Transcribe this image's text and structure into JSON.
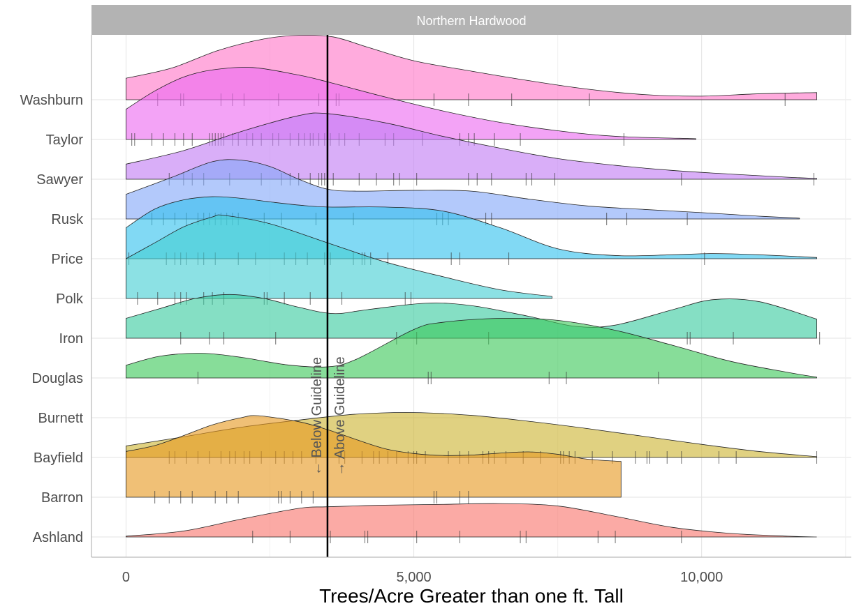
{
  "chart_data": {
    "type": "ridgeline",
    "facet_label": "Northern Hardwood",
    "xlabel": "Trees/Acre Greater than one ft. Tall",
    "ylabel": "",
    "xlim": [
      -600,
      12600
    ],
    "x_ticks": [
      {
        "value": 0,
        "label": "0"
      },
      {
        "value": 5000,
        "label": "5,000"
      },
      {
        "value": 10000,
        "label": "10,000"
      }
    ],
    "grid": true,
    "guideline": {
      "value": 3500,
      "below_label": "← Below Guideline",
      "above_label": "→ Above Guideline"
    },
    "series": [
      {
        "name": "Ashland",
        "color": "#F8766D",
        "density": [
          [
            0,
            0.02
          ],
          [
            1000,
            0.15
          ],
          [
            2000,
            0.45
          ],
          [
            3000,
            0.72
          ],
          [
            3500,
            0.76
          ],
          [
            4500,
            0.8
          ],
          [
            5500,
            0.82
          ],
          [
            6500,
            0.84
          ],
          [
            7500,
            0.78
          ],
          [
            8500,
            0.52
          ],
          [
            9500,
            0.24
          ],
          [
            10500,
            0.09
          ],
          [
            11500,
            0.02
          ],
          [
            12000,
            0
          ]
        ],
        "points": [
          2200,
          2850,
          3500,
          3550,
          4150,
          4200,
          5050,
          5800,
          6850,
          6950,
          8200,
          8500,
          9650
        ]
      },
      {
        "name": "Barron",
        "color": "#E69A22",
        "density": [
          [
            0,
            1.15
          ],
          [
            500,
            1.3
          ],
          [
            1000,
            1.55
          ],
          [
            1500,
            1.82
          ],
          [
            2000,
            2.0
          ],
          [
            2300,
            2.05
          ],
          [
            3000,
            1.9
          ],
          [
            3500,
            1.7
          ],
          [
            4000,
            1.45
          ],
          [
            4500,
            1.22
          ],
          [
            5000,
            1.1
          ],
          [
            5500,
            1.05
          ],
          [
            6000,
            1.06
          ],
          [
            6500,
            1.11
          ],
          [
            7000,
            1.14
          ],
          [
            7500,
            1.08
          ],
          [
            8000,
            0.96
          ],
          [
            8600,
            0.9
          ]
        ],
        "points": [
          500,
          750,
          950,
          1150,
          1550,
          1750,
          1950,
          2650,
          2700,
          2850,
          3050,
          3250,
          5350,
          5400,
          5800,
          5950
        ]
      },
      {
        "name": "Bayfield",
        "color": "#CDB534",
        "density": [
          [
            0,
            0.29
          ],
          [
            1000,
            0.52
          ],
          [
            2000,
            0.76
          ],
          [
            3000,
            0.94
          ],
          [
            4000,
            1.09
          ],
          [
            5000,
            1.13
          ],
          [
            6000,
            1.06
          ],
          [
            7000,
            0.91
          ],
          [
            8000,
            0.73
          ],
          [
            9000,
            0.53
          ],
          [
            10000,
            0.33
          ],
          [
            11000,
            0.15
          ],
          [
            12000,
            0.02
          ]
        ],
        "points": [
          750,
          850,
          1050,
          1250,
          1450,
          1650,
          1800,
          1900,
          2050,
          2150,
          2350,
          2600,
          2750,
          2900,
          3050,
          3300,
          3500,
          3700,
          3800,
          4100,
          4300,
          4400,
          4550,
          4700,
          4900,
          5000,
          5050,
          5200,
          5600,
          5800,
          5950,
          6200,
          6300,
          6400,
          6600,
          6900,
          7200,
          7550,
          7600,
          7700,
          7800,
          8100,
          8450,
          8850,
          9050,
          9100,
          9400,
          9650,
          10300,
          10600,
          12000
        ]
      },
      {
        "name": "Burnett",
        "color": "#D4B200",
        "density": [],
        "points": []
      },
      {
        "name": "Douglas",
        "color": "#3DC85A",
        "density": [
          [
            0,
            0.32
          ],
          [
            600,
            0.55
          ],
          [
            1300,
            0.62
          ],
          [
            2000,
            0.52
          ],
          [
            2800,
            0.33
          ],
          [
            3500,
            0.28
          ],
          [
            4000,
            0.47
          ],
          [
            5000,
            1.22
          ],
          [
            5500,
            1.4
          ],
          [
            6500,
            1.5
          ],
          [
            7500,
            1.45
          ],
          [
            8500,
            1.2
          ],
          [
            9500,
            0.82
          ],
          [
            10500,
            0.42
          ],
          [
            11500,
            0.14
          ],
          [
            12000,
            0.02
          ]
        ],
        "points": [
          1250,
          5250,
          5300,
          7350,
          7650,
          9250
        ]
      },
      {
        "name": "Iron",
        "color": "#3ACBA0",
        "density": [
          [
            0,
            0.5
          ],
          [
            600,
            0.75
          ],
          [
            1200,
            1.0
          ],
          [
            1800,
            1.1
          ],
          [
            2400,
            1.0
          ],
          [
            3000,
            0.78
          ],
          [
            3600,
            0.62
          ],
          [
            4200,
            0.72
          ],
          [
            5200,
            0.88
          ],
          [
            6000,
            0.82
          ],
          [
            7000,
            0.55
          ],
          [
            7800,
            0.3
          ],
          [
            8500,
            0.33
          ],
          [
            9500,
            0.72
          ],
          [
            10200,
            0.97
          ],
          [
            11000,
            0.92
          ],
          [
            12000,
            0.48
          ]
        ],
        "points": [
          950,
          1450,
          1700,
          2600,
          4700,
          5050,
          6300,
          9750,
          9800,
          10550,
          12050
        ]
      },
      {
        "name": "Polk",
        "color": "#45CFD3",
        "density": [
          [
            0,
            1.0
          ],
          [
            500,
            1.4
          ],
          [
            1000,
            1.8
          ],
          [
            1500,
            2.05
          ],
          [
            1700,
            2.09
          ],
          [
            2500,
            1.88
          ],
          [
            3500,
            1.4
          ],
          [
            4500,
            0.92
          ],
          [
            5500,
            0.55
          ],
          [
            6500,
            0.22
          ],
          [
            7400,
            0.05
          ]
        ],
        "points": [
          200,
          550,
          850,
          950,
          1050,
          1350,
          1500,
          1700,
          2400,
          2450,
          2750,
          3200,
          3500,
          3750,
          4850,
          4950
        ]
      },
      {
        "name": "Price",
        "color": "#33C1EE",
        "density": [
          [
            0,
            0.78
          ],
          [
            500,
            1.25
          ],
          [
            1000,
            1.48
          ],
          [
            1500,
            1.56
          ],
          [
            2000,
            1.52
          ],
          [
            2500,
            1.43
          ],
          [
            3000,
            1.35
          ],
          [
            3500,
            1.3
          ],
          [
            4500,
            1.3
          ],
          [
            5500,
            1.2
          ],
          [
            6500,
            0.78
          ],
          [
            7500,
            0.25
          ],
          [
            8500,
            0.08
          ],
          [
            9500,
            0.1
          ],
          [
            10200,
            0.13
          ],
          [
            11000,
            0.1
          ],
          [
            12000,
            0.03
          ]
        ],
        "points": [
          50,
          700,
          850,
          950,
          1050,
          1250,
          1350,
          1550,
          1950,
          2250,
          2750,
          2950,
          3150,
          3450,
          3550,
          3950,
          4100,
          4150,
          4250,
          4550,
          5650,
          5800,
          6650,
          10050
        ]
      },
      {
        "name": "Rusk",
        "color": "#84A8F8",
        "density": [
          [
            0,
            0.62
          ],
          [
            800,
            1.05
          ],
          [
            1500,
            1.44
          ],
          [
            2000,
            1.48
          ],
          [
            2500,
            1.32
          ],
          [
            3000,
            1.0
          ],
          [
            3500,
            0.75
          ],
          [
            4000,
            0.7
          ],
          [
            5000,
            0.72
          ],
          [
            6000,
            0.7
          ],
          [
            7000,
            0.5
          ],
          [
            8000,
            0.33
          ],
          [
            9000,
            0.24
          ],
          [
            10000,
            0.16
          ],
          [
            11000,
            0.07
          ],
          [
            11700,
            0.02
          ]
        ],
        "points": [
          450,
          650,
          850,
          1050,
          1250,
          1350,
          1450,
          1550,
          1650,
          1750,
          1850,
          1950,
          2400,
          2700,
          3300,
          3950,
          5400,
          5500,
          5600,
          6250,
          6350,
          8350,
          8700,
          9750
        ]
      },
      {
        "name": "Sawyer",
        "color": "#C17CF4",
        "density": [
          [
            0,
            0.38
          ],
          [
            1000,
            0.72
          ],
          [
            2000,
            1.2
          ],
          [
            3000,
            1.6
          ],
          [
            3500,
            1.65
          ],
          [
            4500,
            1.42
          ],
          [
            5500,
            1.08
          ],
          [
            6500,
            0.78
          ],
          [
            7500,
            0.52
          ],
          [
            8500,
            0.35
          ],
          [
            9500,
            0.22
          ],
          [
            10500,
            0.13
          ],
          [
            11500,
            0.05
          ],
          [
            12000,
            0.02
          ]
        ],
        "points": [
          750,
          1000,
          1150,
          1350,
          1800,
          2350,
          2700,
          2850,
          3000,
          3200,
          3350,
          3400,
          3450,
          3500,
          3600,
          4050,
          4350,
          4650,
          4750,
          5050,
          5950,
          6100,
          6350,
          6950,
          7050,
          7450,
          9650,
          11950
        ]
      },
      {
        "name": "Taylor",
        "color": "#EB6BF0",
        "density": [
          [
            0,
            0.76
          ],
          [
            500,
            1.22
          ],
          [
            1000,
            1.57
          ],
          [
            1500,
            1.75
          ],
          [
            2200,
            1.81
          ],
          [
            3000,
            1.62
          ],
          [
            3500,
            1.45
          ],
          [
            4500,
            1.07
          ],
          [
            5500,
            0.72
          ],
          [
            6500,
            0.43
          ],
          [
            7500,
            0.22
          ],
          [
            8500,
            0.08
          ],
          [
            9900,
            0.02
          ]
        ],
        "points": [
          100,
          150,
          450,
          650,
          850,
          1000,
          1150,
          1450,
          1500,
          1550,
          1600,
          1650,
          1700,
          1850,
          1950,
          2100,
          2200,
          2350,
          2550,
          2650,
          2850,
          3000,
          3100,
          3200,
          3250,
          3350,
          3450,
          3550,
          3700,
          3800,
          4050,
          4500,
          4650,
          5150,
          5800,
          5950,
          6050,
          6400,
          6850,
          8650
        ]
      },
      {
        "name": "Washburn",
        "color": "#FF77C8",
        "density": [
          [
            0,
            0.54
          ],
          [
            800,
            0.8
          ],
          [
            1600,
            1.24
          ],
          [
            2400,
            1.53
          ],
          [
            3000,
            1.62
          ],
          [
            3600,
            1.58
          ],
          [
            4200,
            1.32
          ],
          [
            5000,
            0.98
          ],
          [
            6000,
            0.72
          ],
          [
            7000,
            0.48
          ],
          [
            8000,
            0.27
          ],
          [
            9000,
            0.13
          ],
          [
            10000,
            0.09
          ],
          [
            11000,
            0.15
          ],
          [
            12000,
            0.18
          ]
        ],
        "points": [
          550,
          950,
          1000,
          1650,
          1850,
          2050,
          2650,
          3350,
          3500,
          3650,
          3700,
          5350,
          5950,
          6700,
          8050,
          11450
        ]
      }
    ]
  }
}
